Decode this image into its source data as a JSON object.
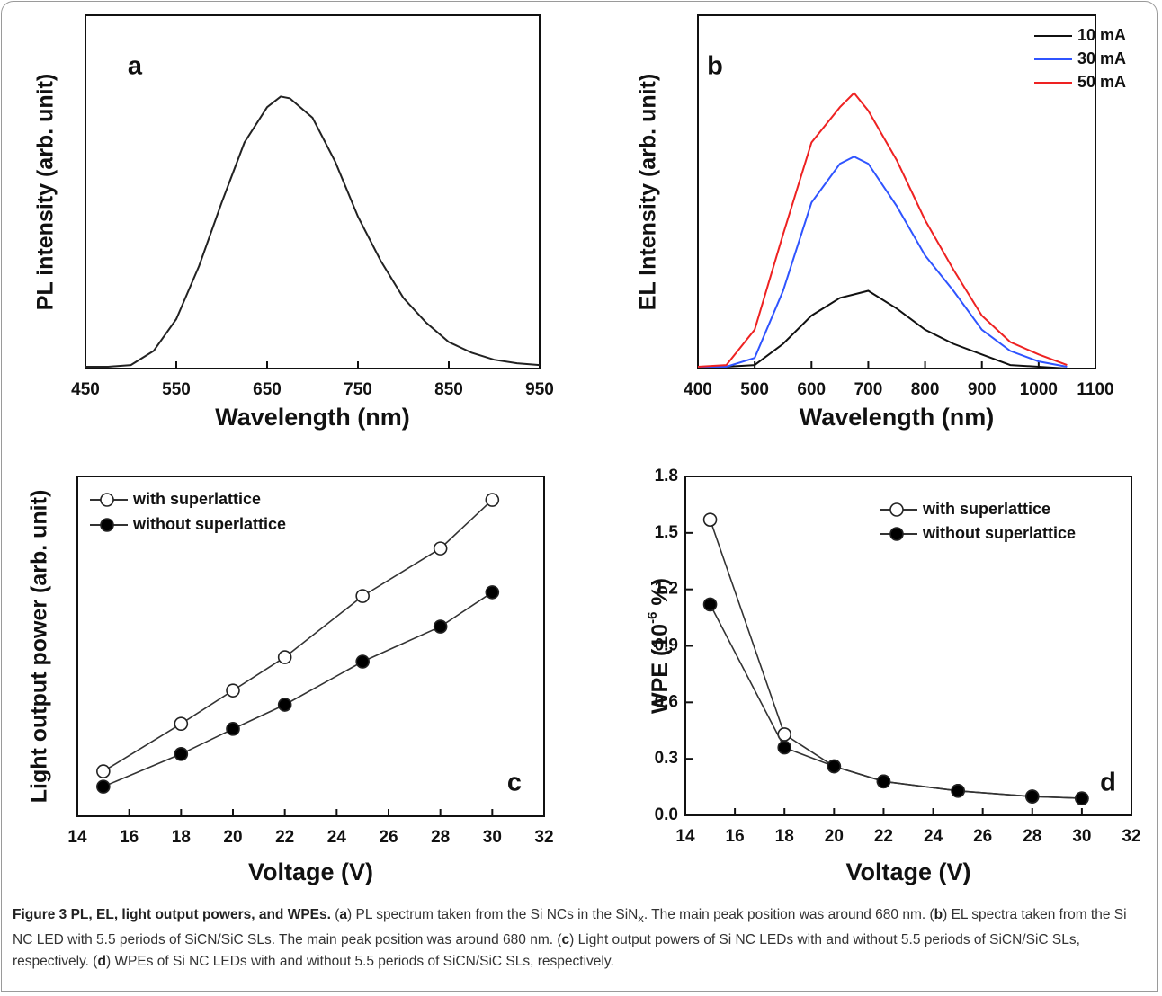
{
  "chart_data": [
    {
      "type": "line",
      "panel": "a",
      "ylabel": "PL intensity (arb. unit)",
      "xlabel": "Wavelength (nm)",
      "x": [
        450,
        475,
        500,
        525,
        550,
        575,
        600,
        625,
        650,
        665,
        675,
        700,
        725,
        750,
        775,
        800,
        825,
        850,
        875,
        900,
        925,
        950
      ],
      "series": [
        {
          "color": "#222222",
          "values": [
            0.005,
            0.005,
            0.01,
            0.05,
            0.14,
            0.29,
            0.47,
            0.64,
            0.74,
            0.77,
            0.765,
            0.71,
            0.585,
            0.43,
            0.305,
            0.2,
            0.13,
            0.075,
            0.045,
            0.025,
            0.015,
            0.01
          ]
        }
      ],
      "xlim": [
        450,
        950
      ],
      "xticks": [
        450,
        550,
        650,
        750,
        850,
        950
      ],
      "ylim": [
        0,
        1
      ]
    },
    {
      "type": "line",
      "panel": "b",
      "ylabel": "EL Intensity (arb. unit)",
      "xlabel": "Wavelength (nm)",
      "x": [
        400,
        450,
        500,
        550,
        600,
        650,
        675,
        700,
        750,
        800,
        850,
        900,
        950,
        1000,
        1050
      ],
      "series": [
        {
          "name": "10 mA",
          "color": "#111111",
          "values": [
            0.005,
            0.005,
            0.01,
            0.07,
            0.15,
            0.2,
            0.21,
            0.22,
            0.17,
            0.11,
            0.07,
            0.04,
            0.01,
            0.005,
            0
          ]
        },
        {
          "name": "30 mA",
          "color": "#2f54ff",
          "values": [
            0.005,
            0.005,
            0.03,
            0.22,
            0.47,
            0.58,
            0.6,
            0.58,
            0.46,
            0.32,
            0.22,
            0.11,
            0.05,
            0.02,
            0.005
          ]
        },
        {
          "name": "50 mA",
          "color": "#ee2222",
          "values": [
            0.005,
            0.01,
            0.11,
            0.38,
            0.64,
            0.74,
            0.78,
            0.73,
            0.59,
            0.42,
            0.28,
            0.15,
            0.075,
            0.04,
            0.01
          ]
        }
      ],
      "xlim": [
        400,
        1100
      ],
      "xticks": [
        400,
        500,
        600,
        700,
        800,
        900,
        1000,
        1100
      ],
      "ylim": [
        0,
        1
      ],
      "legend": "top-right"
    },
    {
      "type": "scatter-line",
      "panel": "c",
      "ylabel": "Light output power (arb. unit)",
      "xlabel": "Voltage (V)",
      "x": [
        15,
        18,
        20,
        22,
        25,
        28,
        30
      ],
      "series": [
        {
          "name": "with superlattice",
          "color": "#ffffff",
          "values": [
            0.132,
            0.272,
            0.37,
            0.468,
            0.648,
            0.788,
            0.931
          ]
        },
        {
          "name": "without superlattice",
          "color": "#000000",
          "values": [
            0.087,
            0.183,
            0.257,
            0.328,
            0.455,
            0.558,
            0.659
          ]
        }
      ],
      "xlim": [
        14,
        32
      ],
      "xticks": [
        14,
        16,
        18,
        20,
        22,
        24,
        26,
        28,
        30,
        32
      ],
      "ylim": [
        0,
        1
      ],
      "legend": "top-left"
    },
    {
      "type": "scatter-line",
      "panel": "d",
      "ylabel": [
        "WPE (10",
        "-6",
        " %)"
      ],
      "xlabel": "Voltage (V)",
      "x": [
        15,
        18,
        20,
        22,
        25,
        28,
        30
      ],
      "series": [
        {
          "name": "with superlattice",
          "color": "#ffffff",
          "values": [
            1.57,
            0.43,
            0.26,
            0.18,
            0.13,
            0.1,
            0.09
          ]
        },
        {
          "name": "without superlattice",
          "color": "#000000",
          "values": [
            1.12,
            0.36,
            0.26,
            0.18,
            0.13,
            0.1,
            0.09
          ]
        }
      ],
      "xlim": [
        14,
        32
      ],
      "xticks": [
        14,
        16,
        18,
        20,
        22,
        24,
        26,
        28,
        30,
        32
      ],
      "ylim": [
        0,
        1.8
      ],
      "yticks": [
        {
          "value": 0,
          "label": "0.0"
        },
        0.3,
        0.6,
        0.9,
        1.2,
        1.5,
        1.8
      ],
      "legend": "top-right"
    }
  ],
  "caption": [
    {
      "t": "Figure 3 PL, EL, light output powers, and WPEs.",
      "b": true
    },
    {
      "t": " ("
    },
    {
      "t": "a",
      "b": true
    },
    {
      "t": ") PL spectrum taken from the Si NCs in the SiN"
    },
    {
      "t": "x",
      "sub": true
    },
    {
      "t": ". The main peak position was around 680 nm. ("
    },
    {
      "t": "b",
      "b": true
    },
    {
      "t": ") EL spectra taken from the Si NC LED with 5.5 periods of SiCN/SiC SLs. The main peak position was around 680 nm. ("
    },
    {
      "t": "c",
      "b": true
    },
    {
      "t": ") Light output powers of Si NC LEDs with and without 5.5 periods of SiCN/SiC SLs, respectively. ("
    },
    {
      "t": "d",
      "b": true
    },
    {
      "t": ") WPEs of Si NC LEDs with and without 5.5 periods of SiCN/SiC SLs, respectively."
    }
  ]
}
